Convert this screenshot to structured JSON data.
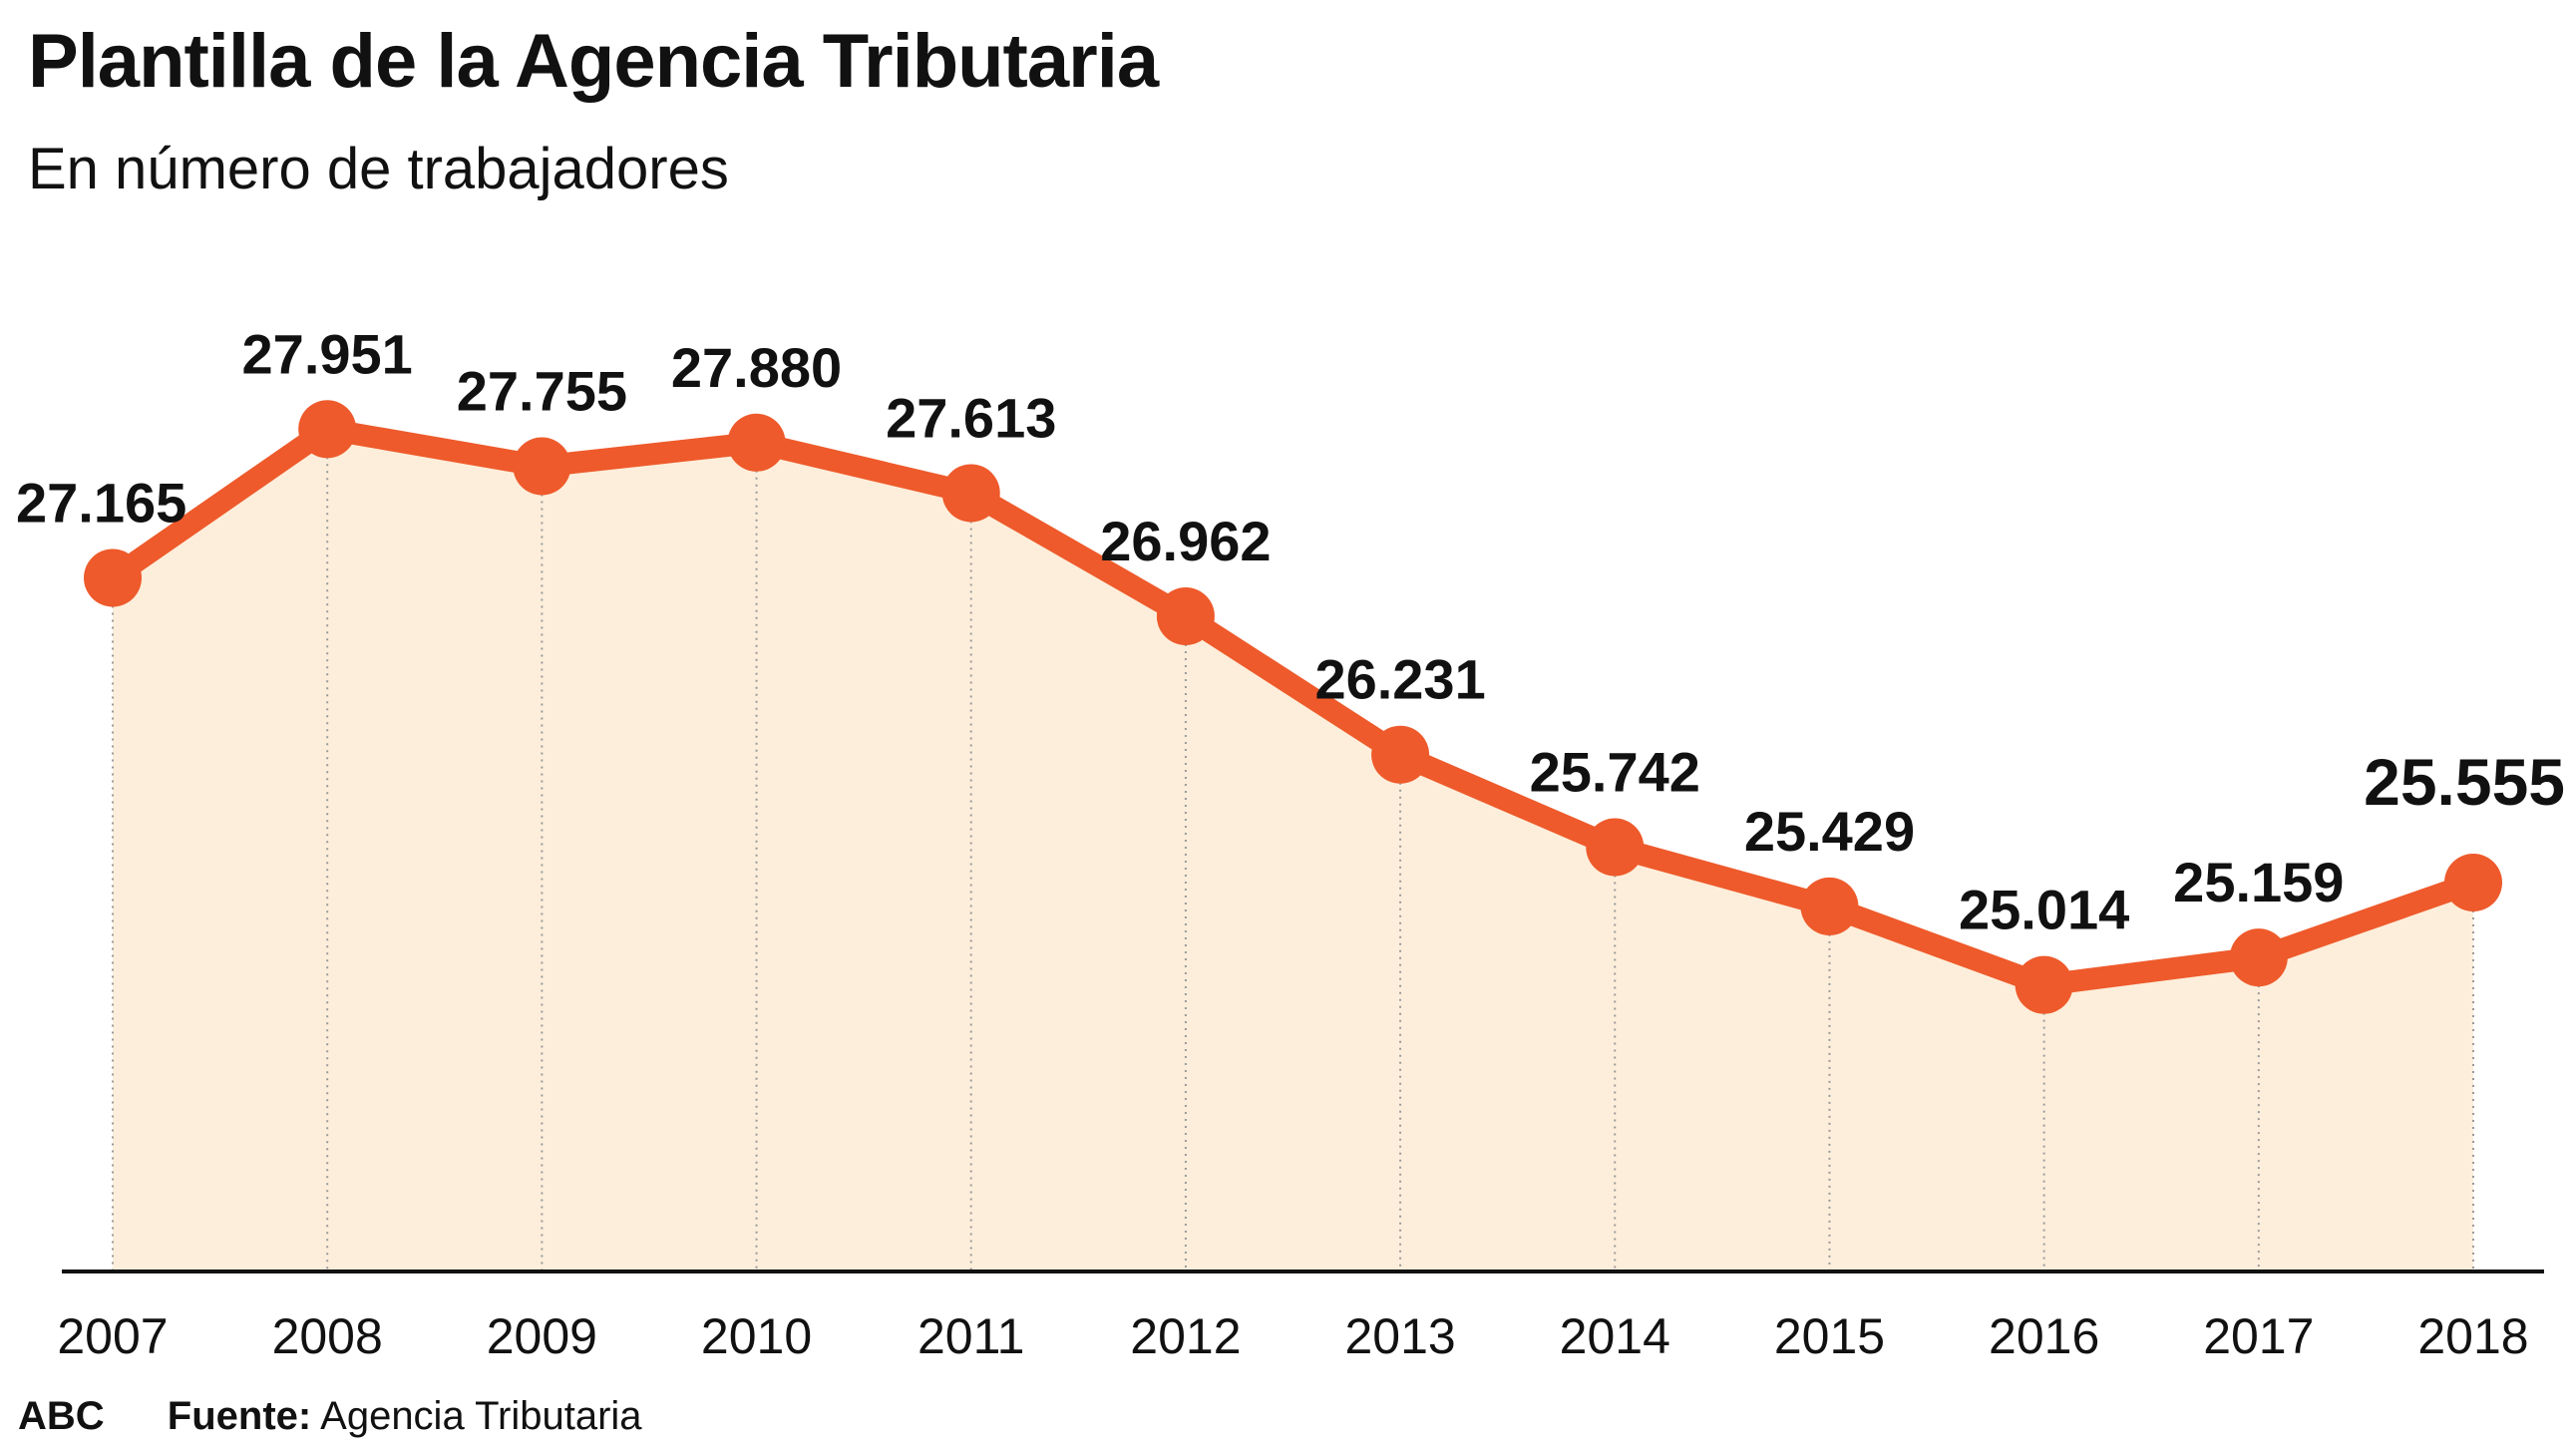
{
  "header": {
    "title": "Plantilla de la Agencia Tributaria",
    "subtitle": "En número de trabajadores"
  },
  "footer": {
    "brand": "ABC",
    "source_label": "Fuente:",
    "source_value": " Agencia Tributaria"
  },
  "colors": {
    "line": "#ee5a2b",
    "fill": "#fdeedb",
    "axis": "#111111",
    "guide": "#9a9a9a"
  },
  "chart_data": {
    "type": "area",
    "title": "Plantilla de la Agencia Tributaria",
    "subtitle": "En número de trabajadores",
    "xlabel": "",
    "ylabel": "",
    "categories": [
      "2007",
      "2008",
      "2009",
      "2010",
      "2011",
      "2012",
      "2013",
      "2014",
      "2015",
      "2016",
      "2017",
      "2018"
    ],
    "values": [
      27165,
      27951,
      27755,
      27880,
      27613,
      26962,
      26231,
      25742,
      25429,
      25014,
      25159,
      25555
    ],
    "labels": [
      "27.165",
      "27.951",
      "27.755",
      "27.880",
      "27.613",
      "26.962",
      "26.231",
      "25.742",
      "25.429",
      "25.014",
      "25.159",
      "25.555"
    ],
    "highlight_index": 11,
    "grid": false,
    "legend": "none"
  }
}
